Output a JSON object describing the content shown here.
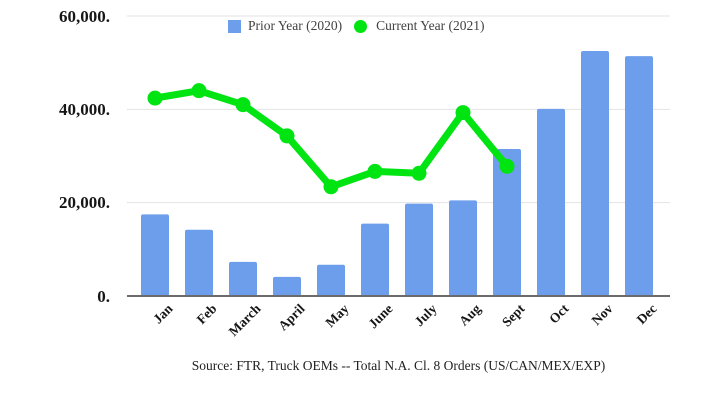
{
  "chart_data": {
    "type": "bar",
    "title": "",
    "xlabel": "",
    "ylabel": "",
    "ylim": [
      0,
      60000
    ],
    "grid": true,
    "legend_position": "top",
    "yticks": {
      "values": [
        0,
        20000,
        40000,
        60000
      ],
      "labels": [
        "0.",
        "20,000.",
        "40,000.",
        "60,000."
      ]
    },
    "categories": [
      "Jan",
      "Feb",
      "March",
      "April",
      "May",
      "June",
      "July",
      "Aug",
      "Sept",
      "Oct",
      "Nov",
      "Dec"
    ],
    "series": [
      {
        "name": "Prior Year (2020)",
        "type": "bar",
        "color": "#6d9eeb",
        "values": [
          17500,
          14200,
          7300,
          4100,
          6700,
          15500,
          19800,
          20500,
          31500,
          40100,
          52500,
          51400
        ]
      },
      {
        "name": "Current Year (2021)",
        "type": "line",
        "color": "#00e412",
        "values": [
          42400,
          44000,
          41000,
          34300,
          23400,
          26700,
          26300,
          39300,
          27800,
          null,
          null,
          null
        ]
      }
    ],
    "gridline_color": "#e3e3e3",
    "axis_line_color": "#6b6b6b",
    "source_note": "Source: FTR, Truck OEMs -- Total N.A. Cl. 8 Orders (US/CAN/MEX/EXP)"
  }
}
